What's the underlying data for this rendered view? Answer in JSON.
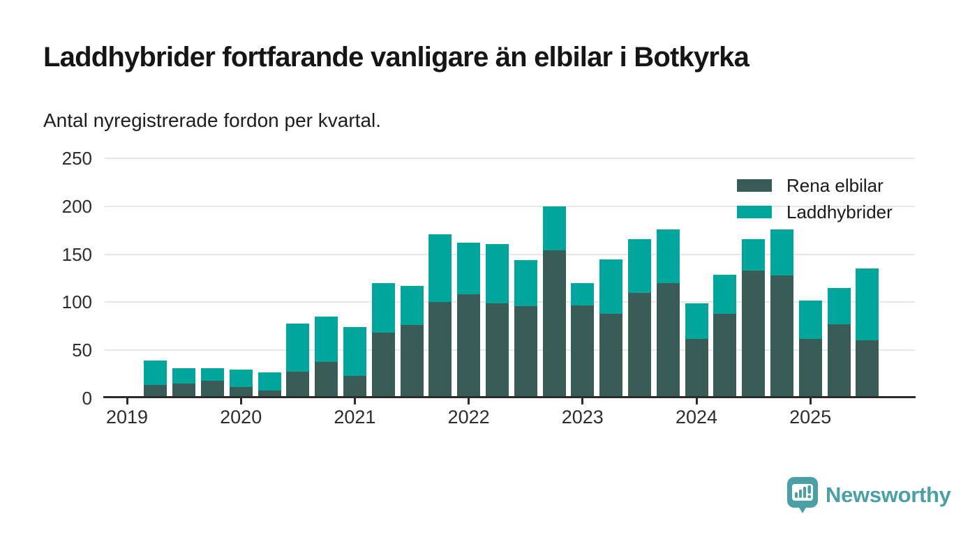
{
  "header": {
    "title": "Laddhybrider fortfarande vanligare än elbilar i Botkyrka",
    "subtitle": "Antal nyregistrerade fordon per kvartal."
  },
  "colors": {
    "rena_elbilar": "#3a5c57",
    "laddhybrider": "#00a59c",
    "gridline": "#e7e7e9",
    "axis": "#2b2b2b",
    "brand": "#4aa0a4"
  },
  "legend": {
    "items": [
      {
        "label": "Rena elbilar",
        "color": "#3a5c57"
      },
      {
        "label": "Laddhybrider",
        "color": "#00a59c"
      }
    ]
  },
  "footer": {
    "brand_name": "Newsworthy"
  },
  "chart_data": {
    "type": "bar",
    "stacked": true,
    "title": "Laddhybrider fortfarande vanligare än elbilar i Botkyrka",
    "subtitle": "Antal nyregistrerade fordon per kvartal.",
    "ylabel": "",
    "xlabel": "",
    "ylim": [
      0,
      250
    ],
    "yticks": [
      0,
      50,
      100,
      150,
      200,
      250
    ],
    "grid": "horizontal",
    "legend_position": "top-right",
    "x_unit": "quarter",
    "year_ticks": [
      "2019",
      "2020",
      "2021",
      "2022",
      "2023",
      "2024",
      "2025"
    ],
    "categories": [
      "2019 Q2",
      "2019 Q3",
      "2019 Q4",
      "2020 Q1",
      "2020 Q2",
      "2020 Q3",
      "2020 Q4",
      "2021 Q1",
      "2021 Q2",
      "2021 Q3",
      "2021 Q4",
      "2022 Q1",
      "2022 Q2",
      "2022 Q3",
      "2022 Q4",
      "2023 Q1",
      "2023 Q2",
      "2023 Q3",
      "2023 Q4",
      "2024 Q1",
      "2024 Q2",
      "2024 Q3",
      "2024 Q4",
      "2025 Q1",
      "2025 Q2",
      "2025 Q3"
    ],
    "series": [
      {
        "name": "Rena elbilar",
        "color": "#3a5c57",
        "values": [
          14,
          15,
          18,
          12,
          8,
          28,
          38,
          23,
          68,
          76,
          100,
          108,
          99,
          96,
          154,
          97,
          88,
          110,
          120,
          62,
          88,
          133,
          128,
          62,
          77,
          60
        ]
      },
      {
        "name": "Laddhybrider",
        "color": "#00a59c",
        "values": [
          25,
          16,
          13,
          18,
          19,
          50,
          47,
          51,
          52,
          41,
          71,
          54,
          62,
          48,
          46,
          23,
          57,
          56,
          56,
          37,
          41,
          33,
          48,
          40,
          38,
          75
        ]
      }
    ],
    "totals": [
      39,
      31,
      31,
      30,
      27,
      78,
      85,
      74,
      120,
      117,
      171,
      162,
      161,
      144,
      200,
      120,
      145,
      166,
      176,
      99,
      129,
      166,
      176,
      102,
      115,
      135
    ]
  }
}
